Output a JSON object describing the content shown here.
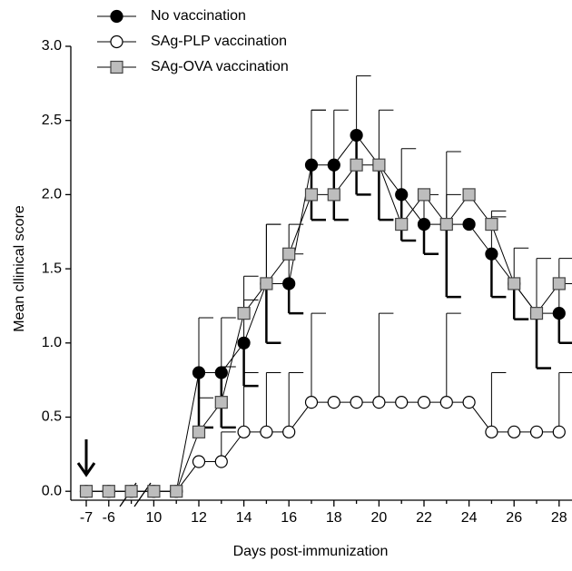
{
  "chart_data": {
    "type": "line",
    "x_label": "Days post-immunization",
    "y_label": "Mean cllinical score",
    "categories": [
      "-7",
      "-6",
      null,
      "10",
      null,
      "12",
      null,
      "14",
      null,
      "16",
      null,
      "18",
      null,
      "20",
      null,
      "22",
      null,
      "24",
      null,
      "26",
      null,
      "28"
    ],
    "ylim": [
      -0.06,
      3.0
    ],
    "yticks": [
      {
        "value": 0,
        "label": "0.0"
      },
      {
        "value": 0.5,
        "label": "0.5"
      },
      {
        "value": 1,
        "label": "1.0"
      },
      {
        "value": 1.5,
        "label": "1.5"
      },
      {
        "value": 2,
        "label": "2.0"
      },
      {
        "value": 2.5,
        "label": "2.5"
      },
      {
        "value": 3,
        "label": "3.0"
      }
    ],
    "legend": "top-left",
    "series": [
      {
        "name": "No vaccination",
        "color": "#000000",
        "marker": "circle",
        "values": [
          0,
          0,
          0,
          0,
          0,
          0.8,
          0.8,
          1.0,
          1.4,
          1.4,
          2.2,
          2.2,
          2.4,
          2.2,
          2.0,
          1.8,
          1.8,
          1.8,
          1.6,
          1.4,
          1.2,
          1.2
        ],
        "errors": [
          0,
          0,
          0,
          0,
          0,
          0.37,
          0.37,
          0.29,
          0.4,
          0.2,
          0.37,
          0.37,
          0.4,
          0.37,
          0.31,
          0.2,
          0.49,
          0,
          0.29,
          0.24,
          0.37,
          0.2
        ]
      },
      {
        "name": "SAg-PLP vaccination",
        "color": "#ffffff",
        "marker": "circle",
        "values": [
          0,
          0,
          0,
          0,
          0,
          0.2,
          0.2,
          0.4,
          0.4,
          0.4,
          0.6,
          0.6,
          0.6,
          0.6,
          0.6,
          0.6,
          0.6,
          0.6,
          0.4,
          0.4,
          0.4,
          0.4
        ],
        "errors": [
          0,
          0,
          0,
          0,
          0,
          0,
          0.2,
          0.4,
          0.4,
          0.4,
          0.6,
          0,
          0,
          0.6,
          0,
          0,
          0.6,
          0,
          0.4,
          0,
          0,
          0.4
        ]
      },
      {
        "name": "SAg-OVA vaccination",
        "color": "#bdbdbd",
        "marker": "square",
        "values": [
          0,
          0,
          0,
          0,
          0,
          0.4,
          0.6,
          1.2,
          1.4,
          1.6,
          2.0,
          2.0,
          2.2,
          2.2,
          1.8,
          2.0,
          1.8,
          2.0,
          1.8,
          1.4,
          1.2,
          1.4
        ],
        "errors": [
          0,
          0,
          0,
          0,
          0,
          0.23,
          0.24,
          0.25,
          0.4,
          0.2,
          0.57,
          0,
          0,
          0,
          0,
          0,
          0.2,
          0,
          0.05,
          0,
          0,
          0.17
        ]
      }
    ]
  }
}
